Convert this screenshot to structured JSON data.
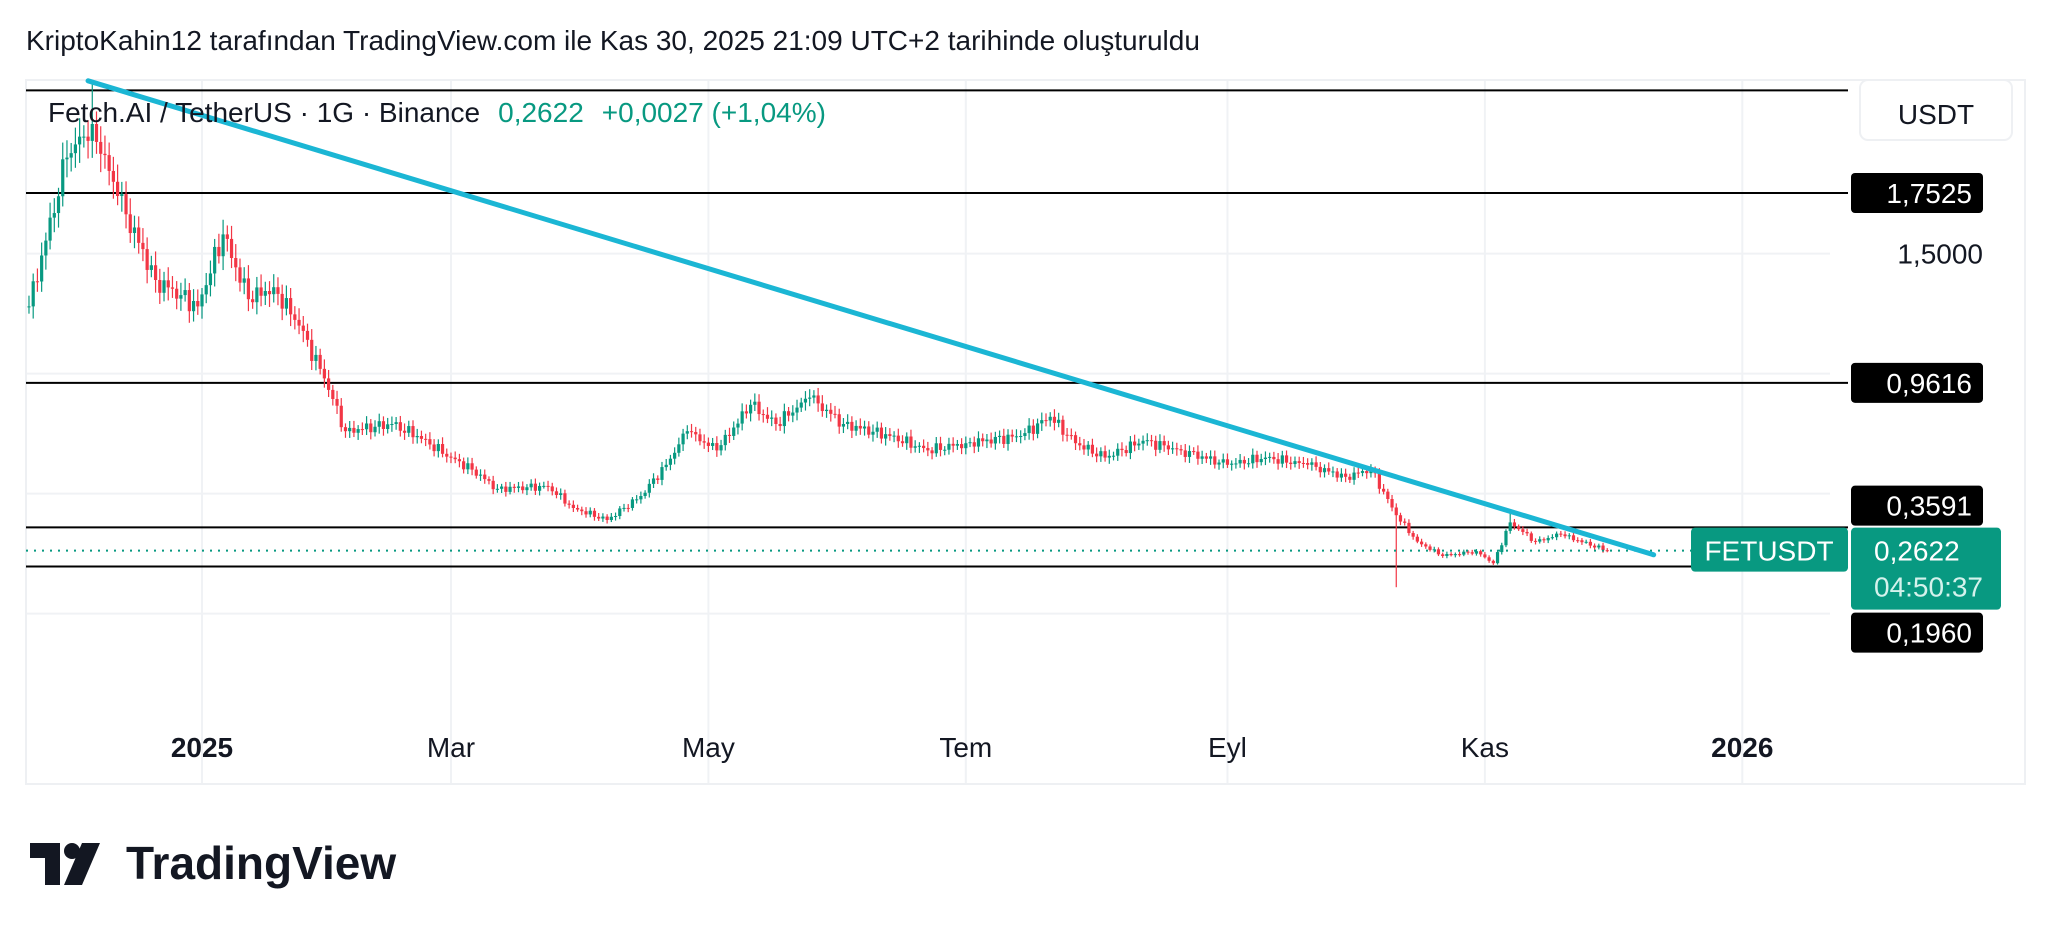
{
  "header": {
    "title": "KriptoKahin12 tarafından TradingView.com ile Kas 30, 2025 21:09 UTC+2 tarihinde oluşturuldu"
  },
  "legend": {
    "symbol": "Fetch.AI / TetherUS · 1G · Binance",
    "price": "0,2622",
    "change": "+0,0027 (+1,04%)"
  },
  "currency_button": "USDT",
  "logo": {
    "text": "TradingView"
  },
  "colors": {
    "up": "#089981",
    "down": "#f23645",
    "trendline": "#1bb6d4",
    "accent": "#089981",
    "label_bg": "#000000"
  },
  "chart_data": {
    "type": "candlestick",
    "title": "Fetch.AI / TetherUS · 1G · Binance",
    "scale": "linear",
    "ylim": [
      -0.05,
      2.4
    ],
    "x_ticks": [
      {
        "label": "2025",
        "date": "2025-01-01",
        "bold": true
      },
      {
        "label": "Mar",
        "date": "2025-03-01"
      },
      {
        "label": "May",
        "date": "2025-05-01"
      },
      {
        "label": "Tem",
        "date": "2025-07-01"
      },
      {
        "label": "Eyl",
        "date": "2025-09-01"
      },
      {
        "label": "Kas",
        "date": "2025-11-01"
      },
      {
        "label": "2026",
        "date": "2026-01-01",
        "bold": true
      }
    ],
    "y_ticks": [
      {
        "label": "1,5000",
        "value": 1.5
      }
    ],
    "hidden_grid_values": [
      1.0,
      0.5,
      0.0
    ],
    "horizontal_levels": [
      {
        "value": 2.18
      },
      {
        "value": 1.7525,
        "label": "1,7525"
      },
      {
        "value": 0.9616,
        "label": "0,9616"
      },
      {
        "value": 0.3591,
        "label": "0,3591"
      },
      {
        "value": 0.196,
        "label": "0,1960"
      }
    ],
    "last_price": {
      "value": 0.2622,
      "label": "0,2622",
      "countdown": "04:50:37",
      "symbol_tag": "FETUSDT"
    },
    "trendline": [
      {
        "date": "2024-12-05",
        "price": 2.22
      },
      {
        "date": "2025-12-11",
        "price": 0.245
      }
    ],
    "close_anchors": [
      {
        "date": "2024-11-21",
        "close": 1.28
      },
      {
        "date": "2024-11-30",
        "close": 1.9
      },
      {
        "date": "2024-12-06",
        "close": 2.04,
        "high": 2.22
      },
      {
        "date": "2024-12-12",
        "close": 1.74
      },
      {
        "date": "2024-12-21",
        "close": 1.39
      },
      {
        "date": "2024-12-31",
        "close": 1.28
      },
      {
        "date": "2025-01-06",
        "close": 1.58
      },
      {
        "date": "2025-01-12",
        "close": 1.31
      },
      {
        "date": "2025-01-18",
        "close": 1.36
      },
      {
        "date": "2025-01-24",
        "close": 1.2
      },
      {
        "date": "2025-01-30",
        "close": 0.98
      },
      {
        "date": "2025-02-04",
        "close": 0.76
      },
      {
        "date": "2025-02-15",
        "close": 0.79
      },
      {
        "date": "2025-02-21",
        "close": 0.74
      },
      {
        "date": "2025-03-01",
        "close": 0.65
      },
      {
        "date": "2025-03-06",
        "close": 0.6
      },
      {
        "date": "2025-03-12",
        "close": 0.52
      },
      {
        "date": "2025-03-24",
        "close": 0.53
      },
      {
        "date": "2025-03-30",
        "close": 0.44
      },
      {
        "date": "2025-04-07",
        "close": 0.39
      },
      {
        "date": "2025-04-15",
        "close": 0.49
      },
      {
        "date": "2025-04-21",
        "close": 0.62
      },
      {
        "date": "2025-04-26",
        "close": 0.76
      },
      {
        "date": "2025-05-03",
        "close": 0.68
      },
      {
        "date": "2025-05-11",
        "close": 0.87
      },
      {
        "date": "2025-05-17",
        "close": 0.79
      },
      {
        "date": "2025-05-25",
        "close": 0.9
      },
      {
        "date": "2025-06-02",
        "close": 0.79
      },
      {
        "date": "2025-06-13",
        "close": 0.74
      },
      {
        "date": "2025-06-22",
        "close": 0.68
      },
      {
        "date": "2025-07-01",
        "close": 0.71
      },
      {
        "date": "2025-07-14",
        "close": 0.74
      },
      {
        "date": "2025-07-21",
        "close": 0.82
      },
      {
        "date": "2025-07-27",
        "close": 0.71
      },
      {
        "date": "2025-08-03",
        "close": 0.65
      },
      {
        "date": "2025-08-12",
        "close": 0.72
      },
      {
        "date": "2025-08-21",
        "close": 0.68
      },
      {
        "date": "2025-09-01",
        "close": 0.62
      },
      {
        "date": "2025-09-10",
        "close": 0.65
      },
      {
        "date": "2025-09-20",
        "close": 0.62
      },
      {
        "date": "2025-09-29",
        "close": 0.57
      },
      {
        "date": "2025-10-05",
        "close": 0.6
      },
      {
        "date": "2025-10-11",
        "close": 0.41,
        "low": 0.11
      },
      {
        "date": "2025-10-16",
        "close": 0.3
      },
      {
        "date": "2025-10-22",
        "close": 0.24
      },
      {
        "date": "2025-10-30",
        "close": 0.26
      },
      {
        "date": "2025-11-03",
        "close": 0.21
      },
      {
        "date": "2025-11-07",
        "close": 0.38,
        "high": 0.43
      },
      {
        "date": "2025-11-13",
        "close": 0.3
      },
      {
        "date": "2025-11-19",
        "close": 0.33
      },
      {
        "date": "2025-11-30",
        "close": 0.2622
      }
    ]
  }
}
